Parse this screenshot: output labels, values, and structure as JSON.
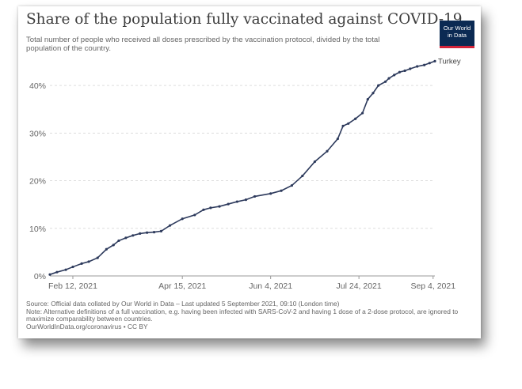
{
  "chart_data": {
    "type": "line",
    "title": "Share of the population fully vaccinated against COVID-19",
    "subtitle": "Total number of people who received all doses prescribed by the vaccination protocol, divided by the total population of the country.",
    "x_tick_labels": [
      "Feb 12, 2021",
      "Apr 15, 2021",
      "Jun 4, 2021",
      "Jul 24, 2021",
      "Sep 4, 2021"
    ],
    "y_tick_labels": [
      "0%",
      "10%",
      "20%",
      "30%",
      "40%"
    ],
    "ylim": [
      0,
      45
    ],
    "grid": "horizontal dashed",
    "series": [
      {
        "name": "Turkey",
        "color": "#2d3a5c",
        "x": [
          "2021-01-30",
          "2021-02-03",
          "2021-02-08",
          "2021-02-12",
          "2021-02-17",
          "2021-02-21",
          "2021-02-26",
          "2021-03-03",
          "2021-03-07",
          "2021-03-10",
          "2021-03-14",
          "2021-03-18",
          "2021-03-22",
          "2021-03-26",
          "2021-03-30",
          "2021-04-03",
          "2021-04-08",
          "2021-04-15",
          "2021-04-22",
          "2021-04-27",
          "2021-05-01",
          "2021-05-06",
          "2021-05-11",
          "2021-05-16",
          "2021-05-21",
          "2021-05-26",
          "2021-06-04",
          "2021-06-10",
          "2021-06-16",
          "2021-06-22",
          "2021-06-29",
          "2021-07-06",
          "2021-07-12",
          "2021-07-15",
          "2021-07-18",
          "2021-07-22",
          "2021-07-26",
          "2021-07-29",
          "2021-08-01",
          "2021-08-04",
          "2021-08-08",
          "2021-08-10",
          "2021-08-13",
          "2021-08-16",
          "2021-08-19",
          "2021-08-22",
          "2021-08-26",
          "2021-08-30",
          "2021-09-02",
          "2021-09-05"
        ],
        "values": [
          0.3,
          0.8,
          1.3,
          1.9,
          2.6,
          3.0,
          3.8,
          5.6,
          6.5,
          7.4,
          8.0,
          8.5,
          8.9,
          9.1,
          9.2,
          9.4,
          10.6,
          12.0,
          12.8,
          13.9,
          14.3,
          14.6,
          15.1,
          15.6,
          16.0,
          16.7,
          17.3,
          17.9,
          19.0,
          21.0,
          24.0,
          26.2,
          28.8,
          31.5,
          32.0,
          33.0,
          34.2,
          37.1,
          38.4,
          40.0,
          40.8,
          41.5,
          42.2,
          42.8,
          43.1,
          43.5,
          44.0,
          44.3,
          44.7,
          45.1
        ]
      }
    ]
  },
  "logo": {
    "line1": "Our World",
    "line2": "in Data",
    "bg": "#0b2a53",
    "accent": "#d4243a"
  },
  "footer": {
    "source": "Source: Official data collated by Our World in Data – Last updated 5 September 2021, 09:10 (London time)",
    "note": "Note: Alternative definitions of a full vaccination, e.g. having been infected with SARS-CoV-2 and having 1 dose of a 2-dose protocol, are ignored to maximize comparability between countries.",
    "credit": "OurWorldInData.org/coronavirus • CC BY"
  }
}
